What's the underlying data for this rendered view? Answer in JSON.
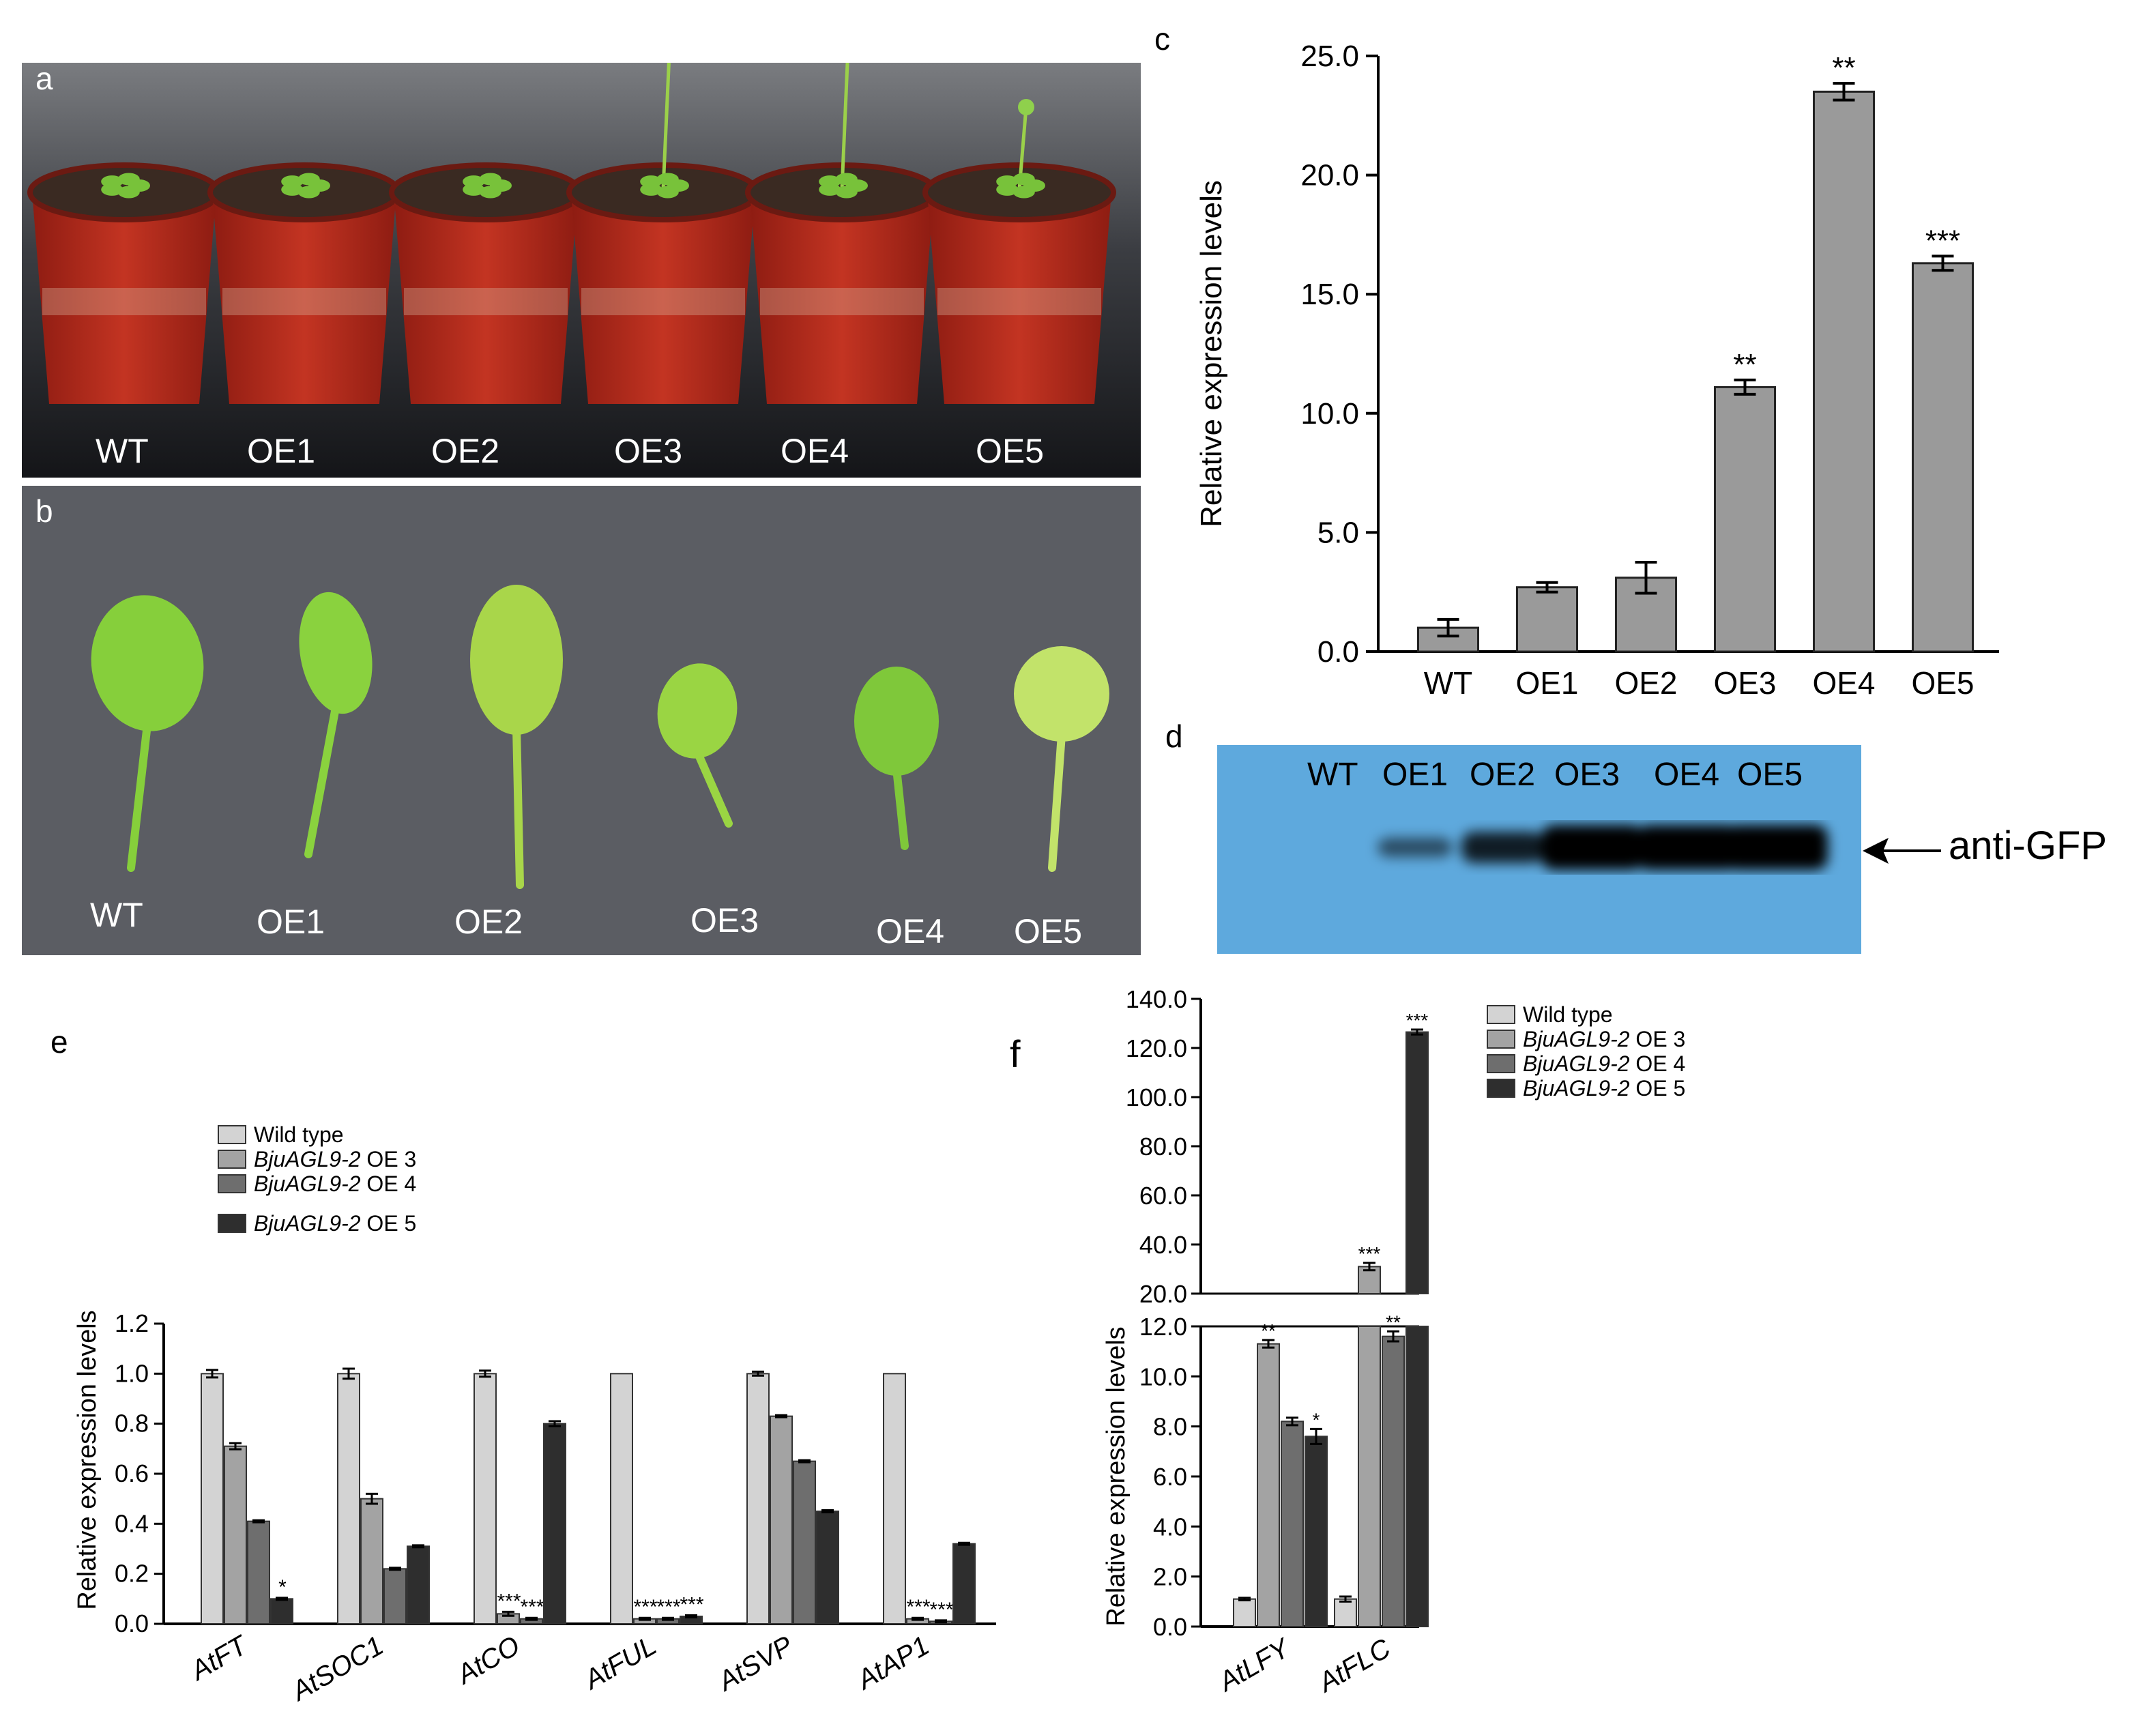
{
  "panel_letters": {
    "a": "a",
    "b": "b",
    "c": "c",
    "d": "d",
    "e": "e",
    "f": "f"
  },
  "photo_a": {
    "labels": [
      "WT",
      "OE1",
      "OE2",
      "OE3",
      "OE4",
      "OE5"
    ]
  },
  "photo_b": {
    "labels": [
      "WT",
      "OE1",
      "OE2",
      "OE3",
      "OE4",
      "OE5"
    ]
  },
  "blot_d": {
    "lanes": [
      "WT",
      "OE1",
      "OE2",
      "OE3",
      "OE4",
      "OE5"
    ],
    "antibody": "anti-GFP",
    "band_intensity": [
      0.0,
      0.25,
      0.6,
      1.0,
      1.0,
      1.0
    ]
  },
  "colors": {
    "bar_gray": "#9a9a9a",
    "wt": "#d3d3d3",
    "oe3": "#a3a3a3",
    "oe4": "#6e6e6e",
    "oe5": "#2e2e2e",
    "blot_bg": "#5ea9dd",
    "plant_pot": "#b3281a",
    "leaf": "#8ccd3a"
  },
  "chart_data": [
    {
      "id": "c",
      "type": "bar",
      "categories": [
        "WT",
        "OE1",
        "OE2",
        "OE3",
        "OE4",
        "OE5"
      ],
      "values": [
        1.0,
        2.7,
        3.1,
        11.1,
        23.5,
        16.3
      ],
      "errors": [
        0.35,
        0.2,
        0.65,
        0.3,
        0.35,
        0.3
      ],
      "significance": [
        "",
        "",
        "",
        "**",
        "**",
        "***"
      ],
      "ylabel": "Relative expression levels",
      "ylim": [
        0,
        25
      ],
      "yticks": [
        "0.0",
        "5.0",
        "10.0",
        "15.0",
        "20.0",
        "25.0"
      ]
    },
    {
      "id": "e",
      "type": "bar",
      "categories": [
        "AtFT",
        "AtSOC1",
        "AtCO",
        "AtFUL",
        "AtSVP",
        "AtAP1"
      ],
      "series": [
        {
          "name": "Wild type",
          "values": [
            1.0,
            1.0,
            1.0,
            1.0,
            1.0,
            1.0
          ],
          "errors": [
            0.015,
            0.02,
            0.012,
            0.0,
            0.008,
            0.0
          ]
        },
        {
          "name_italic": "BjuAGL9-2",
          "name_rest": " OE 3",
          "values": [
            0.71,
            0.5,
            0.04,
            0.02,
            0.83,
            0.02
          ],
          "errors": [
            0.012,
            0.02,
            0.008,
            0.004,
            0.004,
            0.004
          ]
        },
        {
          "name_italic": "BjuAGL9-2",
          "name_rest": " OE 4",
          "values": [
            0.41,
            0.22,
            0.02,
            0.02,
            0.65,
            0.01
          ],
          "errors": [
            0.004,
            0.004,
            0.004,
            0.004,
            0.004,
            0.004
          ]
        },
        {
          "name_italic": "BjuAGL9-2",
          "name_rest": " OE 5",
          "values": [
            0.1,
            0.31,
            0.8,
            0.03,
            0.45,
            0.32
          ],
          "errors": [
            0.004,
            0.004,
            0.01,
            0.004,
            0.004,
            0.004
          ]
        }
      ],
      "significance": [
        [
          "",
          "",
          "",
          "*"
        ],
        [
          "",
          "",
          "",
          ""
        ],
        [
          "",
          "***",
          "***",
          ""
        ],
        [
          "",
          "***",
          "***",
          "***"
        ],
        [
          "",
          "",
          "",
          ""
        ],
        [
          "",
          "***",
          "***",
          ""
        ]
      ],
      "ylabel": "Relative expression levels",
      "ylim": [
        0,
        1.2
      ],
      "yticks": [
        "0.0",
        "0.2",
        "0.4",
        "0.6",
        "0.8",
        "1.0",
        "1.2"
      ]
    },
    {
      "id": "f",
      "type": "bar",
      "categories": [
        "AtLFY",
        "AtFLC"
      ],
      "series": [
        {
          "name": "Wild type",
          "values": [
            1.1,
            1.1
          ],
          "errors": [
            0.05,
            0.1
          ]
        },
        {
          "name_italic": "BjuAGL9-2",
          "name_rest": " OE 3",
          "values": [
            11.3,
            31.0
          ],
          "errors": [
            0.15,
            1.5
          ]
        },
        {
          "name_italic": "BjuAGL9-2",
          "name_rest": " OE 4",
          "values": [
            8.2,
            11.6
          ],
          "errors": [
            0.15,
            0.2
          ]
        },
        {
          "name_italic": "BjuAGL9-2",
          "name_rest": " OE 5",
          "values": [
            7.6,
            126.5
          ],
          "errors": [
            0.3,
            1.0
          ]
        }
      ],
      "significance": [
        [
          "",
          "**",
          "",
          "*"
        ],
        [
          "",
          "***",
          "**",
          "***"
        ]
      ],
      "ylabel": "Relative expression levels",
      "ylim_lower": [
        0,
        12
      ],
      "ylim_upper": [
        20,
        140
      ],
      "yticks_lower": [
        "0.0",
        "2.0",
        "4.0",
        "6.0",
        "8.0",
        "10.0",
        "12.0"
      ],
      "yticks_upper": [
        "20.0",
        "40.0",
        "60.0",
        "80.0",
        "100.0",
        "120.0",
        "140.0"
      ]
    }
  ]
}
